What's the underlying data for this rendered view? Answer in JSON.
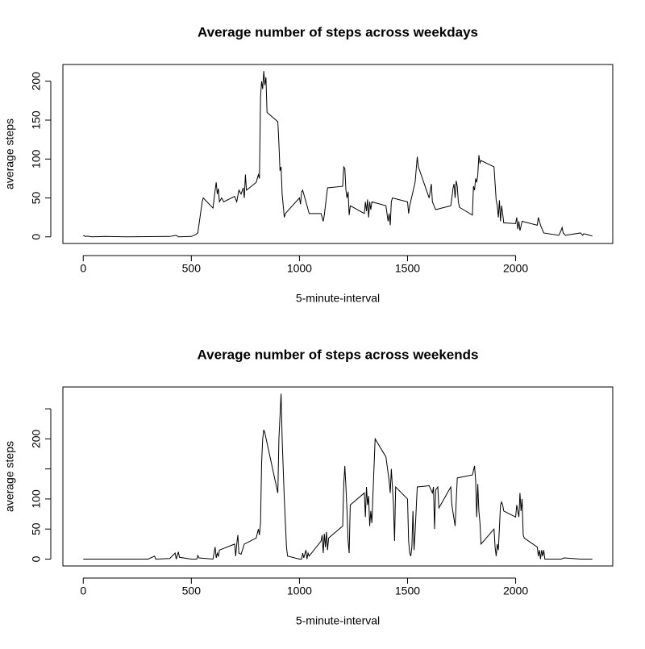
{
  "chart_data": [
    {
      "type": "line",
      "title": "Average number of steps across weekdays",
      "x_label": "5-minute-interval",
      "y_label": "average steps",
      "color": "#000000",
      "xlim": [
        -94.2,
        2449.2
      ],
      "ylim": [
        -8.5,
        221.5
      ],
      "xticks": [
        0,
        500,
        1000,
        1500,
        2000
      ],
      "yticks": [
        0,
        50,
        100,
        150,
        200
      ],
      "x": [
        0,
        10,
        20,
        40,
        100,
        200,
        300,
        400,
        430,
        440,
        500,
        520,
        530,
        550,
        555,
        600,
        610,
        615,
        620,
        625,
        630,
        640,
        650,
        700,
        710,
        720,
        730,
        740,
        745,
        750,
        755,
        800,
        810,
        815,
        820,
        825,
        830,
        835,
        840,
        845,
        850,
        900,
        905,
        910,
        915,
        920,
        925,
        930,
        935,
        1000,
        1005,
        1010,
        1015,
        1030,
        1045,
        1100,
        1110,
        1115,
        1130,
        1200,
        1205,
        1210,
        1215,
        1220,
        1225,
        1230,
        1235,
        1300,
        1305,
        1310,
        1315,
        1320,
        1325,
        1330,
        1335,
        1400,
        1410,
        1415,
        1420,
        1425,
        1430,
        1500,
        1505,
        1510,
        1535,
        1545,
        1550,
        1600,
        1610,
        1615,
        1630,
        1700,
        1705,
        1710,
        1715,
        1720,
        1725,
        1730,
        1735,
        1740,
        1800,
        1805,
        1810,
        1815,
        1820,
        1825,
        1830,
        1835,
        1840,
        1900,
        1910,
        1915,
        1920,
        1925,
        1930,
        1935,
        1940,
        1945,
        2000,
        2005,
        2010,
        2015,
        2020,
        2030,
        2100,
        2105,
        2110,
        2115,
        2130,
        2200,
        2210,
        2215,
        2220,
        2230,
        2300,
        2310,
        2315,
        2330,
        2355
      ],
      "values": [
        2,
        0.5,
        1,
        0,
        0.5,
        0,
        0.3,
        0.5,
        2,
        0,
        0.5,
        3,
        5,
        45,
        50,
        37,
        60,
        70,
        55,
        62,
        45,
        50,
        45,
        52,
        45,
        60,
        55,
        63,
        50,
        80,
        60,
        70,
        80,
        75,
        180,
        200,
        190,
        213,
        195,
        205,
        160,
        148,
        120,
        85,
        90,
        55,
        40,
        25,
        30,
        50,
        42,
        58,
        60,
        45,
        30,
        30,
        20,
        28,
        63,
        65,
        90,
        88,
        60,
        50,
        58,
        28,
        40,
        30,
        45,
        33,
        48,
        25,
        45,
        35,
        45,
        40,
        20,
        30,
        15,
        45,
        50,
        45,
        30,
        40,
        70,
        103,
        90,
        50,
        68,
        45,
        35,
        40,
        50,
        62,
        68,
        50,
        72,
        65,
        45,
        38,
        28,
        65,
        60,
        75,
        70,
        80,
        105,
        95,
        98,
        90,
        47,
        40,
        25,
        47,
        20,
        40,
        30,
        18,
        17,
        25,
        10,
        20,
        8,
        20,
        15,
        25,
        20,
        15,
        5,
        2,
        8,
        12,
        5,
        2,
        5,
        2,
        4,
        3,
        1
      ]
    },
    {
      "type": "line",
      "title": "Average number of steps across weekends",
      "x_label": "5-minute-interval",
      "y_label": "average steps",
      "color": "#000000",
      "xlim": [
        -94.2,
        2449.2
      ],
      "ylim": [
        -11.4,
        286.3
      ],
      "xticks": [
        0,
        500,
        1000,
        1500,
        2000
      ],
      "yticks": [
        0,
        50,
        100,
        {
          "value": 150,
          "label": null
        },
        200,
        {
          "value": 250,
          "label": null
        }
      ],
      "x": [
        0,
        100,
        200,
        300,
        330,
        335,
        400,
        425,
        430,
        440,
        445,
        500,
        525,
        530,
        535,
        600,
        610,
        615,
        620,
        625,
        630,
        700,
        705,
        710,
        715,
        720,
        730,
        745,
        800,
        810,
        815,
        820,
        825,
        830,
        835,
        840,
        900,
        905,
        915,
        920,
        930,
        940,
        945,
        1000,
        1010,
        1015,
        1020,
        1030,
        1035,
        1040,
        1045,
        1100,
        1105,
        1110,
        1115,
        1120,
        1125,
        1130,
        1135,
        1200,
        1205,
        1210,
        1215,
        1220,
        1225,
        1230,
        1235,
        1300,
        1305,
        1310,
        1315,
        1320,
        1325,
        1330,
        1335,
        1350,
        1400,
        1415,
        1420,
        1425,
        1430,
        1435,
        1440,
        1445,
        1500,
        1505,
        1510,
        1515,
        1520,
        1525,
        1530,
        1535,
        1545,
        1600,
        1615,
        1620,
        1625,
        1630,
        1640,
        1645,
        1700,
        1705,
        1720,
        1730,
        1800,
        1810,
        1815,
        1820,
        1825,
        1830,
        1835,
        1840,
        1900,
        1905,
        1910,
        1915,
        1920,
        1930,
        1935,
        1940,
        1945,
        2000,
        2005,
        2010,
        2015,
        2020,
        2025,
        2030,
        2035,
        2040,
        2100,
        2105,
        2110,
        2115,
        2120,
        2125,
        2130,
        2135,
        2200,
        2210,
        2225,
        2300,
        2355
      ],
      "values": [
        0,
        0,
        0,
        0,
        5,
        0,
        1,
        10,
        0,
        12,
        3,
        0,
        0,
        6,
        2,
        0,
        20,
        2,
        10,
        5,
        15,
        25,
        5,
        25,
        40,
        10,
        8,
        25,
        35,
        50,
        40,
        60,
        160,
        200,
        215,
        210,
        110,
        200,
        275,
        200,
        100,
        20,
        5,
        0,
        0,
        10,
        2,
        15,
        0,
        10,
        5,
        30,
        40,
        10,
        42,
        20,
        45,
        15,
        35,
        55,
        125,
        155,
        120,
        80,
        30,
        10,
        90,
        110,
        70,
        120,
        90,
        105,
        55,
        80,
        60,
        200,
        170,
        130,
        110,
        150,
        120,
        90,
        30,
        120,
        100,
        30,
        10,
        5,
        20,
        80,
        15,
        45,
        120,
        122,
        110,
        120,
        50,
        115,
        120,
        85,
        120,
        90,
        55,
        135,
        140,
        155,
        130,
        70,
        125,
        80,
        60,
        25,
        50,
        20,
        5,
        25,
        15,
        90,
        95,
        90,
        80,
        70,
        90,
        80,
        70,
        110,
        80,
        100,
        40,
        35,
        20,
        5,
        15,
        0,
        15,
        5,
        15,
        0,
        0,
        0,
        2,
        0,
        0
      ]
    }
  ]
}
